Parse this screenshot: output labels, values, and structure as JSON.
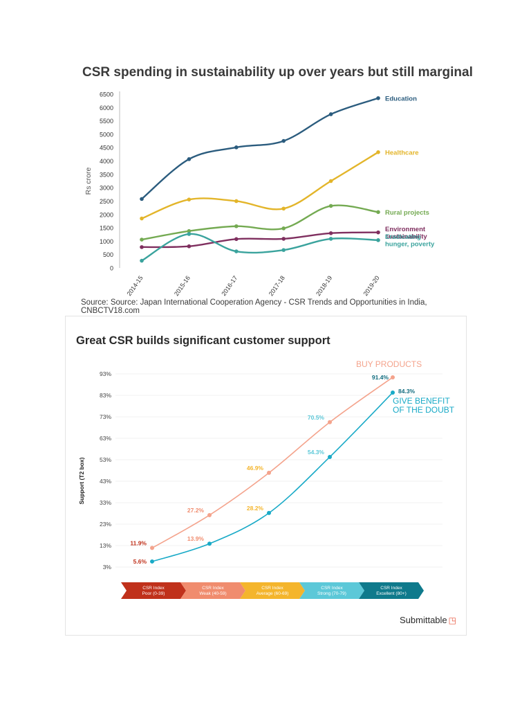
{
  "chart_data": [
    {
      "type": "line",
      "title": "CSR spending in sustainability up over years but still marginal",
      "ylabel": "Rs crore",
      "xlabel": "",
      "ylim": [
        0,
        6500
      ],
      "yticks": [
        0,
        500,
        1000,
        1500,
        2000,
        2500,
        3000,
        3500,
        4000,
        4500,
        5000,
        5500,
        6000,
        6500
      ],
      "categories": [
        "2014-15",
        "2015-16",
        "2016-17",
        "2017-18",
        "2018-19",
        "2019-20"
      ],
      "series": [
        {
          "name": "Education",
          "label_lines": [
            "Education"
          ],
          "color": "#2b5c7e",
          "values": [
            2580,
            4070,
            4510,
            4750,
            5750,
            6350
          ]
        },
        {
          "name": "Healthcare",
          "label_lines": [
            "Healthcare"
          ],
          "color": "#e3b52a",
          "values": [
            1850,
            2560,
            2500,
            2220,
            3250,
            4330
          ]
        },
        {
          "name": "Rural projects",
          "label_lines": [
            "Rural projects"
          ],
          "color": "#74aa52",
          "values": [
            1060,
            1380,
            1560,
            1480,
            2320,
            2090
          ]
        },
        {
          "name": "Environment sustainability",
          "label_lines": [
            "Environment",
            "sustainability"
          ],
          "color": "#7f2f5f",
          "values": [
            780,
            810,
            1080,
            1090,
            1300,
            1330
          ]
        },
        {
          "name": "Eradicating hunger, poverty",
          "label_lines": [
            "Eradicating",
            "hunger, poverty"
          ],
          "color": "#3aa39d",
          "values": [
            270,
            1270,
            620,
            670,
            1090,
            1040
          ]
        }
      ],
      "source": "Source: Source: Japan International Cooperation Agency - CSR Trends and Opportunities in India, CNBCTV18.com"
    },
    {
      "type": "line",
      "title": "Great CSR builds significant customer support",
      "ylabel": "Support (T2 box)",
      "ylim": [
        3,
        93
      ],
      "yticks": [
        "3%",
        "13%",
        "23%",
        "33%",
        "43%",
        "53%",
        "63%",
        "73%",
        "83%",
        "93%"
      ],
      "categories": [
        {
          "lines": [
            "CSR Index",
            "Poor (0-39)"
          ],
          "color": "#c0311b"
        },
        {
          "lines": [
            "CSR Index",
            "Weak (40-59)"
          ],
          "color": "#f08c6e"
        },
        {
          "lines": [
            "CSR Index",
            "Average (60-69)"
          ],
          "color": "#f4b52c"
        },
        {
          "lines": [
            "CSR Index",
            "Strong (70-79)"
          ],
          "color": "#5cc8d8"
        },
        {
          "lines": [
            "CSR Index",
            "Excellent (80+)"
          ],
          "color": "#0f7a8c"
        }
      ],
      "series": [
        {
          "name": "BUY PRODUCTS",
          "label_lines": [
            "BUY PRODUCTS"
          ],
          "color": "#f4a38c",
          "values": [
            11.9,
            27.2,
            46.9,
            70.5,
            91.4
          ],
          "point_labels": [
            "11.9%",
            "27.2%",
            "46.9%",
            "70.5%",
            "91.4%"
          ]
        },
        {
          "name": "GIVE BENEFIT OF THE DOUBT",
          "label_lines": [
            "GIVE BENEFIT",
            "OF THE DOUBT"
          ],
          "color": "#19aac7",
          "values": [
            5.6,
            13.9,
            28.2,
            54.3,
            84.3
          ],
          "point_labels": [
            "5.6%",
            "13.9%",
            "28.2%",
            "54.3%",
            "84.3%"
          ]
        }
      ],
      "brand": "Submittable",
      "brand_mark": "◳"
    }
  ]
}
